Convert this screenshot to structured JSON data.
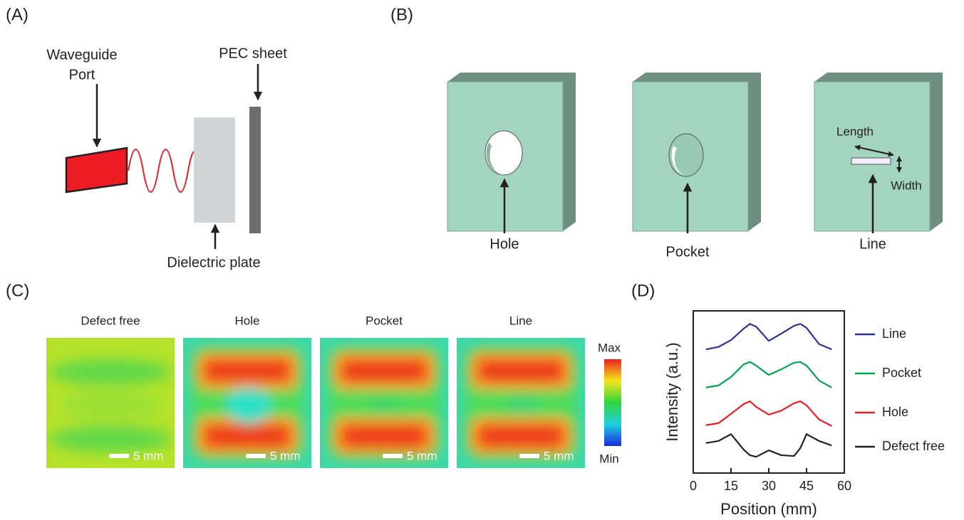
{
  "panel_a": {
    "label": "(A)",
    "waveguide_port": [
      "Waveguide",
      "Port"
    ],
    "pec_sheet": "PEC sheet",
    "dielectric_plate": "Dielectric plate"
  },
  "panel_b": {
    "label": "(B)",
    "hole": "Hole",
    "pocket": "Pocket",
    "line": "Line",
    "length": "Length",
    "width": "Width"
  },
  "panel_c": {
    "label": "(C)",
    "maps": [
      {
        "title": "Defect free",
        "scale_bar": "5 mm"
      },
      {
        "title": "Hole",
        "scale_bar": "5 mm"
      },
      {
        "title": "Pocket",
        "scale_bar": "5 mm"
      },
      {
        "title": "Line",
        "scale_bar": "5 mm"
      }
    ],
    "colorbar": {
      "max": "Max",
      "min": "Min"
    }
  },
  "chart_data": {
    "type": "line",
    "label": "(D)",
    "x_label": "Position (mm)",
    "y_label": "Intensity (a.u.)",
    "x": [
      5,
      10,
      15,
      20,
      22.5,
      25,
      30,
      35,
      40,
      42.5,
      45,
      50,
      55
    ],
    "xlim": [
      0,
      60
    ],
    "xticks": [
      0,
      15,
      30,
      45,
      60
    ],
    "ylim": [
      0,
      4
    ],
    "series": [
      {
        "name": "Line",
        "color": "#2e3192",
        "values": [
          3.05,
          3.11,
          3.28,
          3.56,
          3.68,
          3.61,
          3.26,
          3.44,
          3.63,
          3.68,
          3.58,
          3.18,
          3.05
        ]
      },
      {
        "name": "Pocket",
        "color": "#00a651",
        "values": [
          2.11,
          2.16,
          2.37,
          2.68,
          2.74,
          2.65,
          2.42,
          2.56,
          2.72,
          2.74,
          2.65,
          2.28,
          2.11
        ]
      },
      {
        "name": "Hole",
        "color": "#ed1c24",
        "values": [
          1.18,
          1.23,
          1.46,
          1.7,
          1.77,
          1.63,
          1.44,
          1.54,
          1.72,
          1.77,
          1.67,
          1.32,
          1.16
        ]
      },
      {
        "name": "Defect free",
        "color": "#231f20",
        "values": [
          0.74,
          0.79,
          0.96,
          0.58,
          0.44,
          0.4,
          0.56,
          0.44,
          0.42,
          0.61,
          0.96,
          0.79,
          0.68
        ]
      }
    ]
  }
}
